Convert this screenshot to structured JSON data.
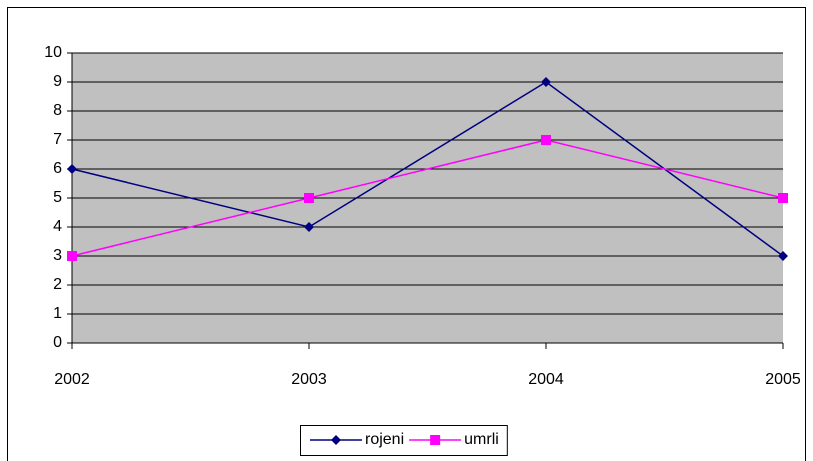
{
  "chart_data": {
    "type": "line",
    "categories": [
      "2002",
      "2003",
      "2004",
      "2005"
    ],
    "series": [
      {
        "name": "rojeni",
        "color": "#000080",
        "marker": "diamond",
        "values": [
          6,
          4,
          9,
          3
        ]
      },
      {
        "name": "umrli",
        "color": "#ff00ff",
        "marker": "square",
        "values": [
          3,
          5,
          7,
          5
        ]
      }
    ],
    "ylim": [
      0,
      10
    ],
    "yticks": [
      0,
      1,
      2,
      3,
      4,
      5,
      6,
      7,
      8,
      9,
      10
    ],
    "grid": true,
    "plot_background": "#c0c0c0",
    "legend": "bottom"
  }
}
